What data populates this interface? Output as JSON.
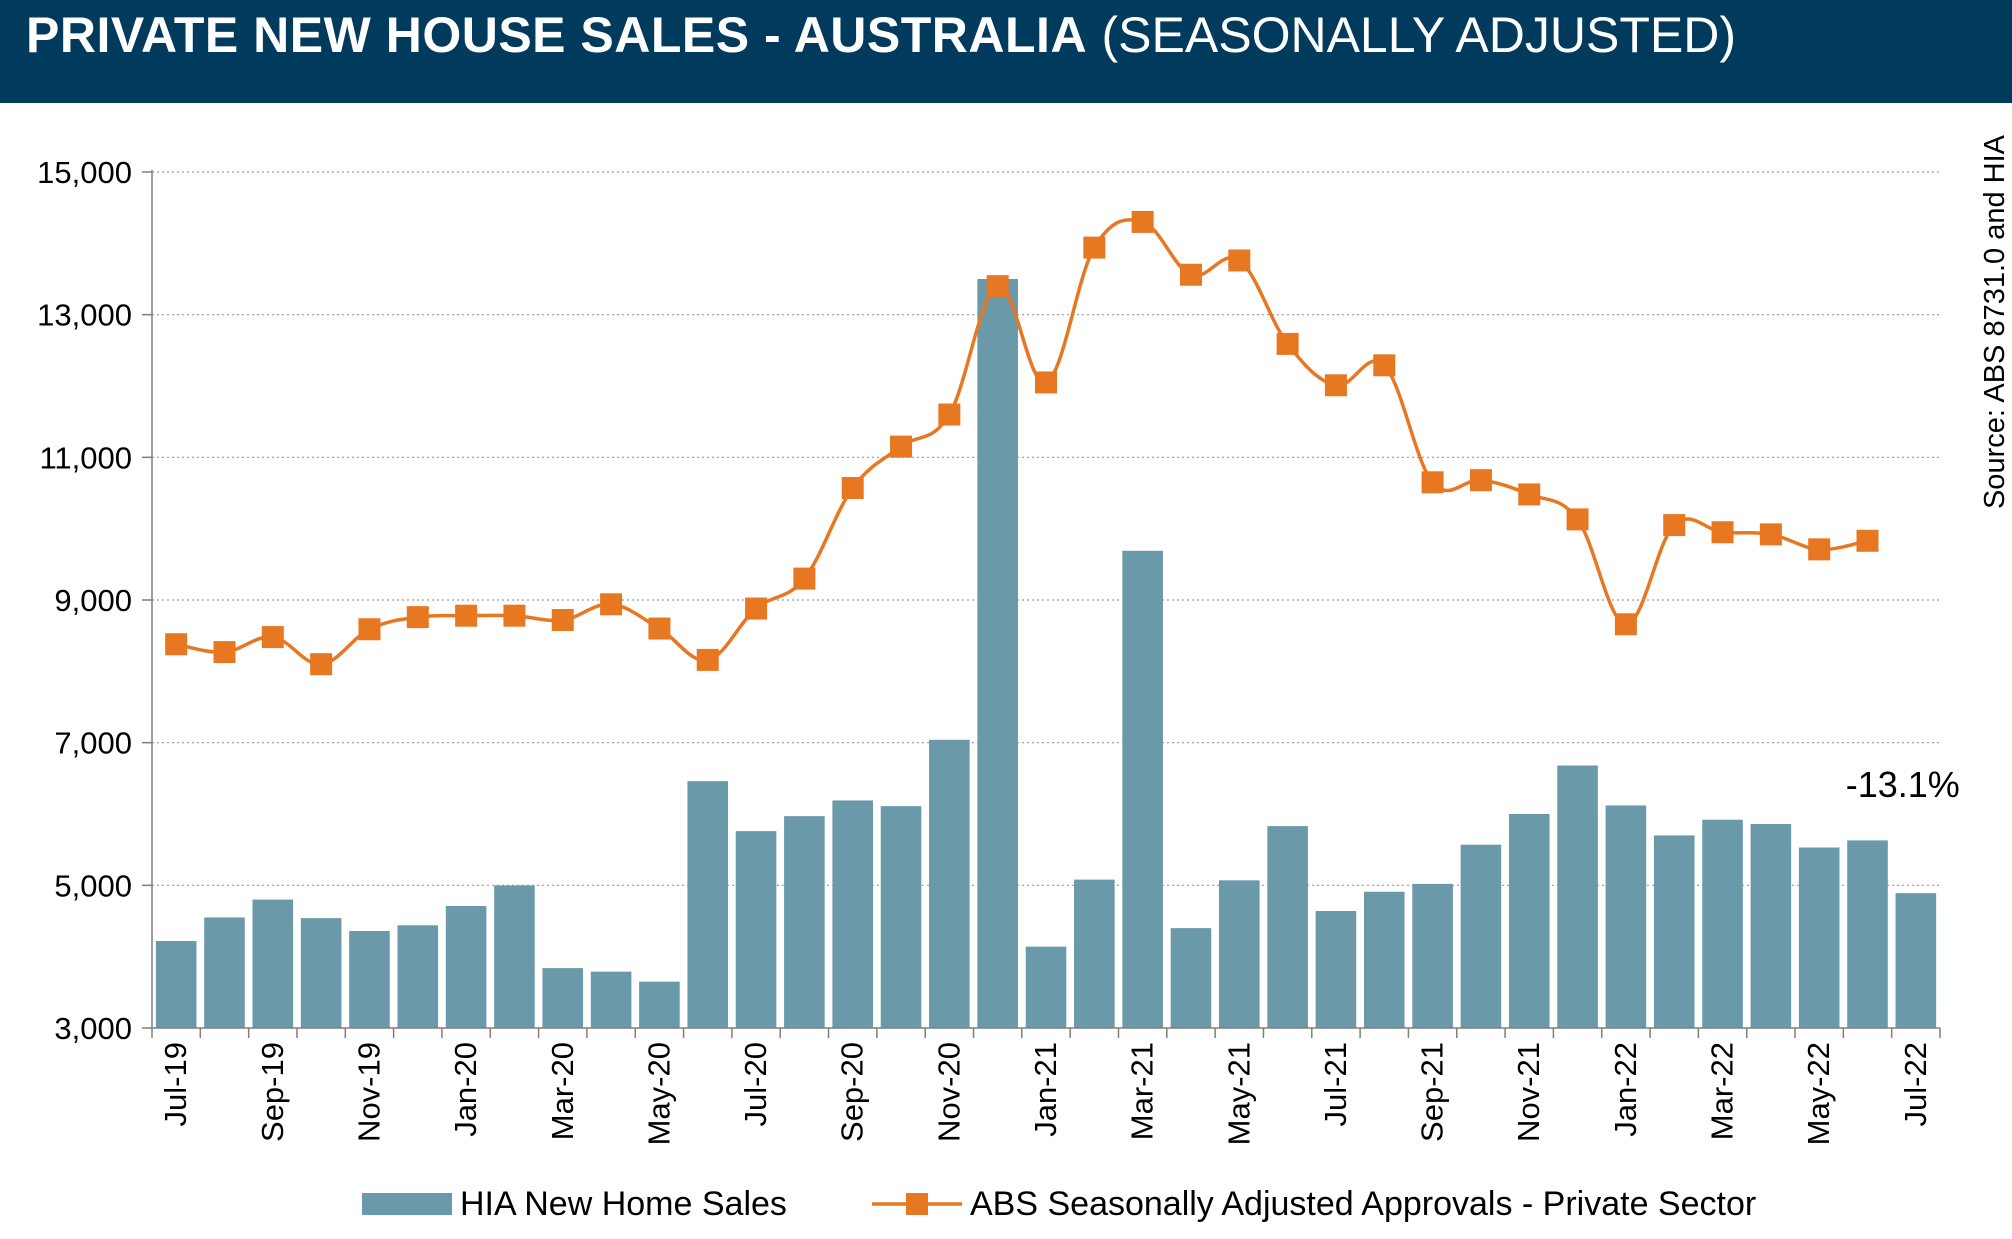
{
  "header": {
    "title_main": "PRIVATE NEW HOUSE SALES -  AUSTRALIA",
    "title_sub": "(SEASONALLY ADJUSTED)",
    "background_color": "#003a5d"
  },
  "chart_data": {
    "type": "bar",
    "title": "PRIVATE NEW HOUSE SALES -  AUSTRALIA (SEASONALLY ADJUSTED)",
    "xlabel": "",
    "ylabel": "",
    "ylim": [
      3000,
      15000
    ],
    "y_ticks": [
      3000,
      5000,
      7000,
      9000,
      11000,
      13000,
      15000
    ],
    "y_tick_labels": [
      "3,000",
      "5,000",
      "7,000",
      "9,000",
      "11,000",
      "13,000",
      "15,000"
    ],
    "grid": true,
    "legend_position": "bottom",
    "categories": [
      "Jul-19",
      "Aug-19",
      "Sep-19",
      "Oct-19",
      "Nov-19",
      "Dec-19",
      "Jan-20",
      "Feb-20",
      "Mar-20",
      "Apr-20",
      "May-20",
      "Jun-20",
      "Jul-20",
      "Aug-20",
      "Sep-20",
      "Oct-20",
      "Nov-20",
      "Dec-20",
      "Jan-21",
      "Feb-21",
      "Mar-21",
      "Apr-21",
      "May-21",
      "Jun-21",
      "Jul-21",
      "Aug-21",
      "Sep-21",
      "Oct-21",
      "Nov-21",
      "Dec-21",
      "Jan-22",
      "Feb-22",
      "Mar-22",
      "Apr-22",
      "May-22",
      "Jun-22",
      "Jul-22"
    ],
    "x_tick_labels": [
      "Jul-19",
      "Sep-19",
      "Nov-19",
      "Jan-20",
      "Mar-20",
      "May-20",
      "Jul-20",
      "Sep-20",
      "Nov-20",
      "Jan-21",
      "Mar-21",
      "May-21",
      "Jul-21",
      "Sep-21",
      "Nov-21",
      "Jan-22",
      "Mar-22",
      "May-22",
      "Jul-22"
    ],
    "series": [
      {
        "name": "HIA New Home Sales",
        "type": "bar",
        "color": "#6a9aaa",
        "values": [
          4220,
          4550,
          4800,
          4540,
          4360,
          4440,
          4710,
          5000,
          3840,
          3790,
          3650,
          6460,
          5760,
          5970,
          6190,
          6110,
          7040,
          13500,
          4140,
          5080,
          9690,
          4400,
          5070,
          5830,
          4640,
          4910,
          5020,
          5570,
          6000,
          6680,
          6120,
          5700,
          5920,
          5860,
          5530,
          5630,
          4890
        ]
      },
      {
        "name": "ABS Seasonally Adjusted Approvals - Private Sector",
        "type": "line",
        "color": "#e87722",
        "values": [
          8380,
          8270,
          8480,
          8100,
          8590,
          8760,
          8780,
          8780,
          8720,
          8940,
          8600,
          8160,
          8880,
          9300,
          10570,
          11150,
          11600,
          13400,
          12050,
          13940,
          14300,
          13560,
          13760,
          12590,
          12010,
          12290,
          10650,
          10680,
          10480,
          10130,
          8660,
          10050,
          9950,
          9920,
          9710,
          9830,
          null
        ]
      }
    ],
    "annotations": [
      {
        "text": "-13.1%",
        "category": "Jul-22"
      }
    ],
    "source": "Source: ABS 8731.0 and HIA"
  }
}
